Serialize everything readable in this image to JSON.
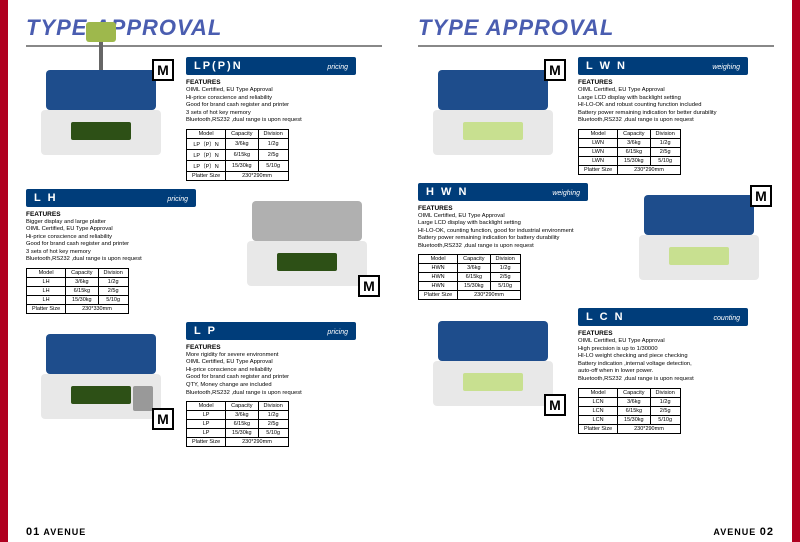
{
  "colors": {
    "accent_red": "#b00020",
    "header_blue": "#003d7a",
    "title_color": "#4a5db0",
    "platter_blue": "#1e4d8c",
    "platter_silver": "#b0b0b0",
    "display_green": "#2d5016",
    "display_light": "#c8e090"
  },
  "left_page": {
    "title": "TYPE APPROVAL",
    "page_label": "01",
    "brand": "AVENUE",
    "products": [
      {
        "layout": "img-left",
        "img": {
          "platter_color": "#1e4d8c",
          "display_color": "#2d5016",
          "has_pole": true,
          "m_pos": "top-right"
        },
        "name": "LP(P)N",
        "category": "pricing",
        "features_title": "FEATURES",
        "features": [
          "OIML Certified, EU Type Approval",
          "Hi-price conscience and reliability",
          "Good for brand cash register and printer",
          "3 sets of hot key memory",
          "Bluetooth,RS232 ,dual range is upon request"
        ],
        "table": {
          "headers": [
            "Model",
            "Capacity",
            "Division"
          ],
          "rows": [
            [
              "LP（P）N",
              "3/6kg",
              "1/2g"
            ],
            [
              "LP（P）N",
              "6/15kg",
              "2/5g"
            ],
            [
              "LP（P）N",
              "15/30kg",
              "5/10g"
            ]
          ],
          "footer": [
            "Platter Size",
            "230*290mm"
          ]
        }
      },
      {
        "layout": "info-left",
        "img": {
          "platter_color": "#b0b0b0",
          "display_color": "#2d5016",
          "has_pole": false,
          "m_pos": "bottom-right"
        },
        "name": "L H",
        "category": "pricing",
        "features_title": "FEATURES",
        "features": [
          "Bigger display and large platter",
          "OIML Certified, EU Type Approval",
          "Hi-price conscience and reliability",
          "Good for brand cash register and printer",
          "3 sets of hot key memory",
          "Bluetooth,RS232 ,dual range is upon request"
        ],
        "table": {
          "headers": [
            "Model",
            "Capacity",
            "Division"
          ],
          "rows": [
            [
              "LH",
              "3/6kg",
              "1/2g"
            ],
            [
              "LH",
              "6/15kg",
              "2/5g"
            ],
            [
              "LH",
              "15/30kg",
              "5/10g"
            ]
          ],
          "footer": [
            "Platter Size",
            "230*330mm"
          ]
        }
      },
      {
        "layout": "img-left",
        "img": {
          "platter_color": "#1e4d8c",
          "display_color": "#2d5016",
          "has_pole": false,
          "m_pos": "bottom-right",
          "has_keypad": true
        },
        "name": "L P",
        "category": "pricing",
        "features_title": "FEATURES",
        "features": [
          "More rigidity for severe environment",
          "OIML Certified, EU Type Approval",
          "Hi-price conscience and reliability",
          "Good for brand cash register and printer",
          "QTY, Money change are included",
          "Bluetooth,RS232 ,dual range is upon request"
        ],
        "table": {
          "headers": [
            "Model",
            "Capacity",
            "Division"
          ],
          "rows": [
            [
              "LP",
              "3/6kg",
              "1/2g"
            ],
            [
              "LP",
              "6/15kg",
              "2/5g"
            ],
            [
              "LP",
              "15/30kg",
              "5/10g"
            ]
          ],
          "footer": [
            "Platter Size",
            "230*290mm"
          ]
        }
      }
    ]
  },
  "right_page": {
    "title": "TYPE APPROVAL",
    "page_label": "02",
    "brand": "AVENUE",
    "products": [
      {
        "layout": "img-left",
        "img": {
          "platter_color": "#1e4d8c",
          "display_color": "#c8e090",
          "has_pole": false,
          "m_pos": "top-right"
        },
        "name": "L W N",
        "category": "weighing",
        "features_title": "FEATURES",
        "features": [
          "OIML Certified, EU Type Approval",
          "Large LCD display with backlight setting",
          "HI-LO-OK and robust counting function included",
          "Battery power remaining indication for better durability",
          "Bluetooth,RS232 ,dual range is upon request"
        ],
        "table": {
          "headers": [
            "Model",
            "Capacity",
            "Division"
          ],
          "rows": [
            [
              "LWN",
              "3/6kg",
              "1/2g"
            ],
            [
              "LWN",
              "6/15kg",
              "2/5g"
            ],
            [
              "LWN",
              "15/30kg",
              "5/10g"
            ]
          ],
          "footer": [
            "Platter Size",
            "230*290mm"
          ]
        }
      },
      {
        "layout": "info-left",
        "img": {
          "platter_color": "#1e4d8c",
          "display_color": "#c8e090",
          "has_pole": false,
          "m_pos": "top-right"
        },
        "name": "H W N",
        "category": "weighing",
        "features_title": "FEATURES",
        "features": [
          "OIML Certified, EU Type Approval",
          "Large LCD display with backlight setting",
          "HI-LO-OK, counting function, good for industrial environment",
          "Battery power remaining indication for battery durability",
          "Bluetooth,RS232 ,dual range is upon request"
        ],
        "table": {
          "headers": [
            "Model",
            "Capacity",
            "Division"
          ],
          "rows": [
            [
              "HWN",
              "3/6kg",
              "1/2g"
            ],
            [
              "HWN",
              "6/15kg",
              "2/5g"
            ],
            [
              "HWN",
              "15/30kg",
              "5/10g"
            ]
          ],
          "footer": [
            "Platter Size",
            "230*290mm"
          ]
        }
      },
      {
        "layout": "img-left",
        "img": {
          "platter_color": "#1e4d8c",
          "display_color": "#c8e090",
          "has_pole": false,
          "m_pos": "bottom-right"
        },
        "name": "L C N",
        "category": "counting",
        "features_title": "FEATURES",
        "features": [
          "OIML Certified, EU Type Approval",
          "High precision is up to  1/30000",
          "HI-LO weight checking and piece checking",
          "Battery indication ,internal voltage detection,",
          "auto-off when in lower power.",
          "Bluetooth,RS232 ,dual range is upon request"
        ],
        "table": {
          "headers": [
            "Model",
            "Capacity",
            "Division"
          ],
          "rows": [
            [
              "LCN",
              "3/6kg",
              "1/2g"
            ],
            [
              "LCN",
              "6/15kg",
              "2/5g"
            ],
            [
              "LCN",
              "15/30kg",
              "5/10g"
            ]
          ],
          "footer": [
            "Platter Size",
            "230*290mm"
          ]
        }
      }
    ]
  },
  "m_label": "M"
}
